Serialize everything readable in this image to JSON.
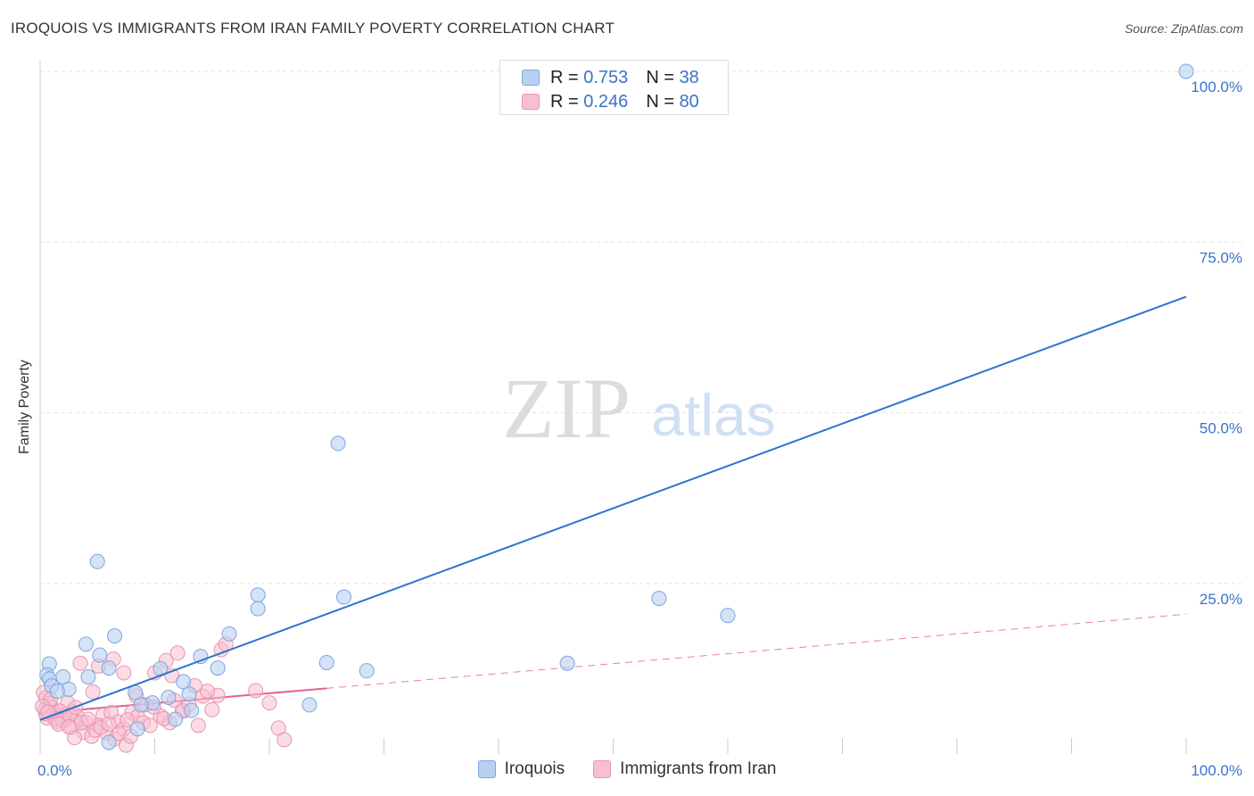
{
  "header": {
    "title": "IROQUOIS VS IMMIGRANTS FROM IRAN FAMILY POVERTY CORRELATION CHART",
    "source": "Source: ZipAtlas.com"
  },
  "watermark": {
    "zip": "ZIP",
    "atlas": "atlas"
  },
  "legend": {
    "series1": {
      "r_label": "R =",
      "r_value": "0.753",
      "n_label": "N =",
      "n_value": "38"
    },
    "series2": {
      "r_label": "R =",
      "r_value": "0.246",
      "n_label": "N =",
      "n_value": "80"
    }
  },
  "bottom_legend": {
    "series1": "Iroquois",
    "series2": "Immigrants from Iran"
  },
  "colors": {
    "blue_fill": "#b9d0f2",
    "blue_stroke": "#7ea4dd",
    "blue_line": "#2f73cf",
    "pink_fill": "#f7bfd0",
    "pink_stroke": "#e993b0",
    "pink_line": "#e2628c",
    "axis_text": "#3b73c9",
    "grid": "#e3e3e3"
  },
  "chart_data": {
    "type": "scatter",
    "title": "IROQUOIS VS IMMIGRANTS FROM IRAN FAMILY POVERTY CORRELATION CHART",
    "xlabel": "",
    "ylabel": "Family Poverty",
    "xlim": [
      0,
      100
    ],
    "ylim": [
      0,
      100
    ],
    "x_tick_labels": [
      "0.0%",
      "100.0%"
    ],
    "y_tick_values": [
      25,
      50,
      75,
      100
    ],
    "y_tick_labels": [
      "25.0%",
      "50.0%",
      "75.0%",
      "100.0%"
    ],
    "series": [
      {
        "name": "Iroquois",
        "r": 0.753,
        "n": 38,
        "trend": {
          "x0": 0,
          "y0": 5.0,
          "x1": 100,
          "y1": 67.0,
          "style": "solid"
        },
        "points": [
          [
            100,
            100
          ],
          [
            26,
            45.5
          ],
          [
            5,
            28.2
          ],
          [
            19,
            23.3
          ],
          [
            26.5,
            23
          ],
          [
            54,
            22.8
          ],
          [
            60,
            20.3
          ],
          [
            19,
            21.3
          ],
          [
            6.5,
            17.3
          ],
          [
            16.5,
            17.6
          ],
          [
            4,
            16.1
          ],
          [
            5.2,
            14.5
          ],
          [
            14,
            14.3
          ],
          [
            0.8,
            13.2
          ],
          [
            25,
            13.4
          ],
          [
            46,
            13.3
          ],
          [
            6,
            12.6
          ],
          [
            15.5,
            12.6
          ],
          [
            10.5,
            12.5
          ],
          [
            28.5,
            12.2
          ],
          [
            0.6,
            11.6
          ],
          [
            2,
            11.3
          ],
          [
            4.2,
            11.3
          ],
          [
            0.8,
            11
          ],
          [
            12.5,
            10.6
          ],
          [
            1,
            10
          ],
          [
            2.5,
            9.5
          ],
          [
            1.5,
            9.2
          ],
          [
            8.3,
            9
          ],
          [
            13,
            8.8
          ],
          [
            11.2,
            8.3
          ],
          [
            9.8,
            7.5
          ],
          [
            13.2,
            6.4
          ],
          [
            23.5,
            7.2
          ],
          [
            8.8,
            7.2
          ],
          [
            11.8,
            5.1
          ],
          [
            8.5,
            3.7
          ],
          [
            6,
            1.7
          ]
        ]
      },
      {
        "name": "Immigrants from Iran",
        "r": 0.246,
        "n": 80,
        "trend": {
          "x0": 0,
          "y0": 6.0,
          "x1": 100,
          "y1": 20.5,
          "solid_until_x": 25,
          "style": "solid-then-dashed"
        },
        "points": [
          [
            0.3,
            9
          ],
          [
            0.5,
            8.2
          ],
          [
            0.8,
            7.4
          ],
          [
            0.4,
            6.5
          ],
          [
            1.2,
            6.1
          ],
          [
            1.8,
            5.6
          ],
          [
            0.6,
            5.3
          ],
          [
            2.2,
            5.1
          ],
          [
            1.5,
            4.8
          ],
          [
            2.8,
            6.2
          ],
          [
            3.3,
            5.4
          ],
          [
            4,
            4.6
          ],
          [
            2.7,
            3.9
          ],
          [
            3.8,
            3.2
          ],
          [
            4.5,
            2.6
          ],
          [
            3,
            2.4
          ],
          [
            5.5,
            5.7
          ],
          [
            6.2,
            6.1
          ],
          [
            5.1,
            4.2
          ],
          [
            6.8,
            4.7
          ],
          [
            7.3,
            3.7
          ],
          [
            5.8,
            3.1
          ],
          [
            6.5,
            2.2
          ],
          [
            7.5,
            1.3
          ],
          [
            8,
            6.1
          ],
          [
            8.5,
            5.5
          ],
          [
            7.6,
            5
          ],
          [
            9,
            4.6
          ],
          [
            9.6,
            4.2
          ],
          [
            10.5,
            5.6
          ],
          [
            11.3,
            4.6
          ],
          [
            12.5,
            6.3
          ],
          [
            10,
            11.9
          ],
          [
            11,
            13.7
          ],
          [
            11.5,
            11.5
          ],
          [
            12,
            14.8
          ],
          [
            13.5,
            10
          ],
          [
            14.2,
            8.5
          ],
          [
            15,
            6.5
          ],
          [
            15.5,
            8.6
          ],
          [
            15.8,
            15.3
          ],
          [
            16.2,
            16.1
          ],
          [
            18.8,
            9.3
          ],
          [
            20,
            7.5
          ],
          [
            20.8,
            3.8
          ],
          [
            21.3,
            2.1
          ],
          [
            13.8,
            4.2
          ],
          [
            12.4,
            6.4
          ],
          [
            3.5,
            13.3
          ],
          [
            4.6,
            9.1
          ],
          [
            5.1,
            12.9
          ],
          [
            6.4,
            13.9
          ],
          [
            7.3,
            11.9
          ],
          [
            8.4,
            8.5
          ],
          [
            9.2,
            7.2
          ],
          [
            2.4,
            7.5
          ],
          [
            1,
            6.8
          ],
          [
            1.7,
            6.3
          ],
          [
            0.5,
            5.9
          ],
          [
            1.3,
            5.2
          ],
          [
            2,
            4.9
          ],
          [
            2.6,
            5.7
          ],
          [
            3.6,
            4.6
          ],
          [
            4.2,
            5.1
          ],
          [
            3.1,
            6.8
          ],
          [
            0.9,
            8
          ],
          [
            0.2,
            7
          ],
          [
            0.7,
            6.2
          ],
          [
            1.6,
            4.4
          ],
          [
            2.5,
            4
          ],
          [
            4.8,
            3.5
          ],
          [
            5.3,
            3.9
          ],
          [
            6,
            4.4
          ],
          [
            6.9,
            3
          ],
          [
            7.9,
            2.6
          ],
          [
            9.9,
            6.9
          ],
          [
            10.8,
            5.2
          ],
          [
            13,
            7.3
          ],
          [
            14.6,
            9.2
          ],
          [
            11.7,
            7.9
          ]
        ]
      }
    ]
  }
}
